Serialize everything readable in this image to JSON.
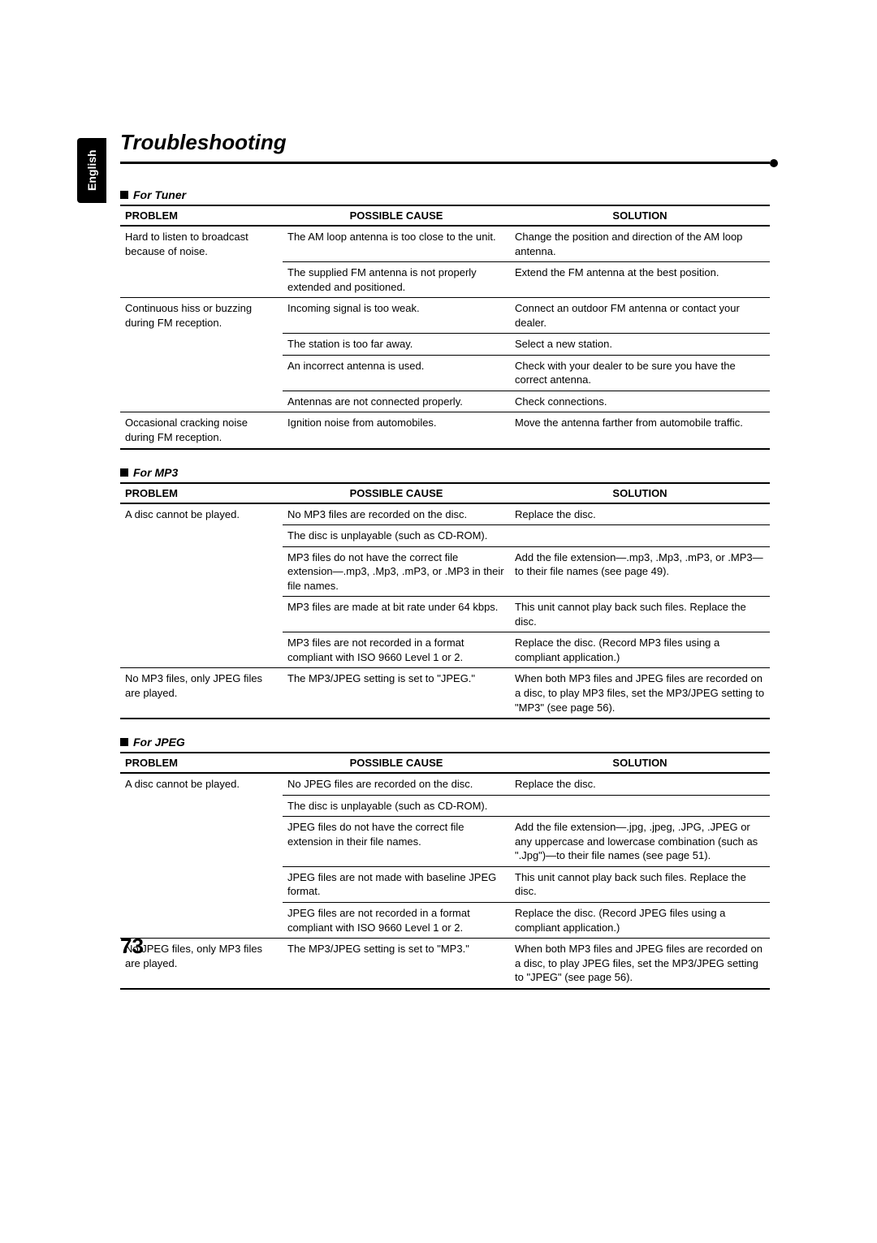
{
  "language_tab": "English",
  "title": "Troubleshooting",
  "page_number": "73",
  "headers": {
    "problem": "PROBLEM",
    "cause": "POSSIBLE CAUSE",
    "solution": "SOLUTION"
  },
  "sections": [
    {
      "heading": "For Tuner",
      "cells": {
        "r0p": "Hard to listen to broadcast because of noise.",
        "r0c": "The AM loop antenna is too close to the unit.",
        "r0s": "Change the position and direction of the AM loop antenna.",
        "r1c": "The supplied FM antenna is not properly extended and positioned.",
        "r1s": "Extend the FM antenna at the best position.",
        "r2p": "Continuous hiss or buzzing during FM reception.",
        "r2c": "Incoming signal is too weak.",
        "r2s": "Connect an outdoor FM antenna or contact your dealer.",
        "r3c": "The station is too far away.",
        "r3s": "Select a new station.",
        "r4c": "An incorrect antenna is used.",
        "r4s": "Check with your dealer to be sure you have the correct antenna.",
        "r5c": "Antennas are not connected properly.",
        "r5s": "Check connections.",
        "r6p": "Occasional cracking noise during FM reception.",
        "r6c": "Ignition noise from automobiles.",
        "r6s": "Move the antenna farther from automobile traffic."
      }
    },
    {
      "heading": "For MP3",
      "cells": {
        "r0p": "A disc cannot be played.",
        "r0c": "No MP3 files are recorded on the disc.",
        "r0s": "Replace the disc.",
        "r1c": "The disc is unplayable (such as CD-ROM).",
        "r2c": "MP3 files do not have the correct file extension—.mp3, .Mp3, .mP3, or .MP3 in their file names.",
        "r2s": "Add the file extension—.mp3, .Mp3, .mP3, or .MP3—to their file names (see page 49).",
        "r3c": "MP3 files are made at bit rate under 64 kbps.",
        "r3s": "This unit cannot play back such files. Replace the disc.",
        "r4c": "MP3 files are not recorded in a format compliant with ISO 9660 Level 1 or 2.",
        "r4s": "Replace the disc. (Record MP3 files using a compliant application.)",
        "r5p": "No MP3 files, only JPEG files are played.",
        "r5c": "The MP3/JPEG setting is set to \"JPEG.\"",
        "r5s": "When both MP3 files and JPEG files are recorded on a disc, to play MP3 files, set the MP3/JPEG setting to \"MP3\" (see page 56)."
      }
    },
    {
      "heading": "For JPEG",
      "cells": {
        "r0p": "A disc cannot be played.",
        "r0c": "No JPEG files are recorded on the disc.",
        "r0s": "Replace the disc.",
        "r1c": "The disc is unplayable (such as CD-ROM).",
        "r2c": "JPEG files do not have the correct file extension in their file names.",
        "r2s": "Add the file extension—.jpg, .jpeg, .JPG, .JPEG or any uppercase and lowercase combination (such as \".Jpg\")—to their file names (see page 51).",
        "r3c": "JPEG files are not made with baseline JPEG format.",
        "r3s": "This unit cannot play back such files. Replace the disc.",
        "r4c": "JPEG files are not recorded in a format compliant with ISO 9660 Level 1 or 2.",
        "r4s": "Replace the disc. (Record JPEG files using a compliant application.)",
        "r5p": "No JPEG files, only MP3 files are played.",
        "r5c": "The MP3/JPEG setting is set to \"MP3.\"",
        "r5s": "When both MP3 files and JPEG files are recorded on a disc, to play JPEG files, set the MP3/JPEG setting to \"JPEG\" (see page 56)."
      }
    }
  ]
}
